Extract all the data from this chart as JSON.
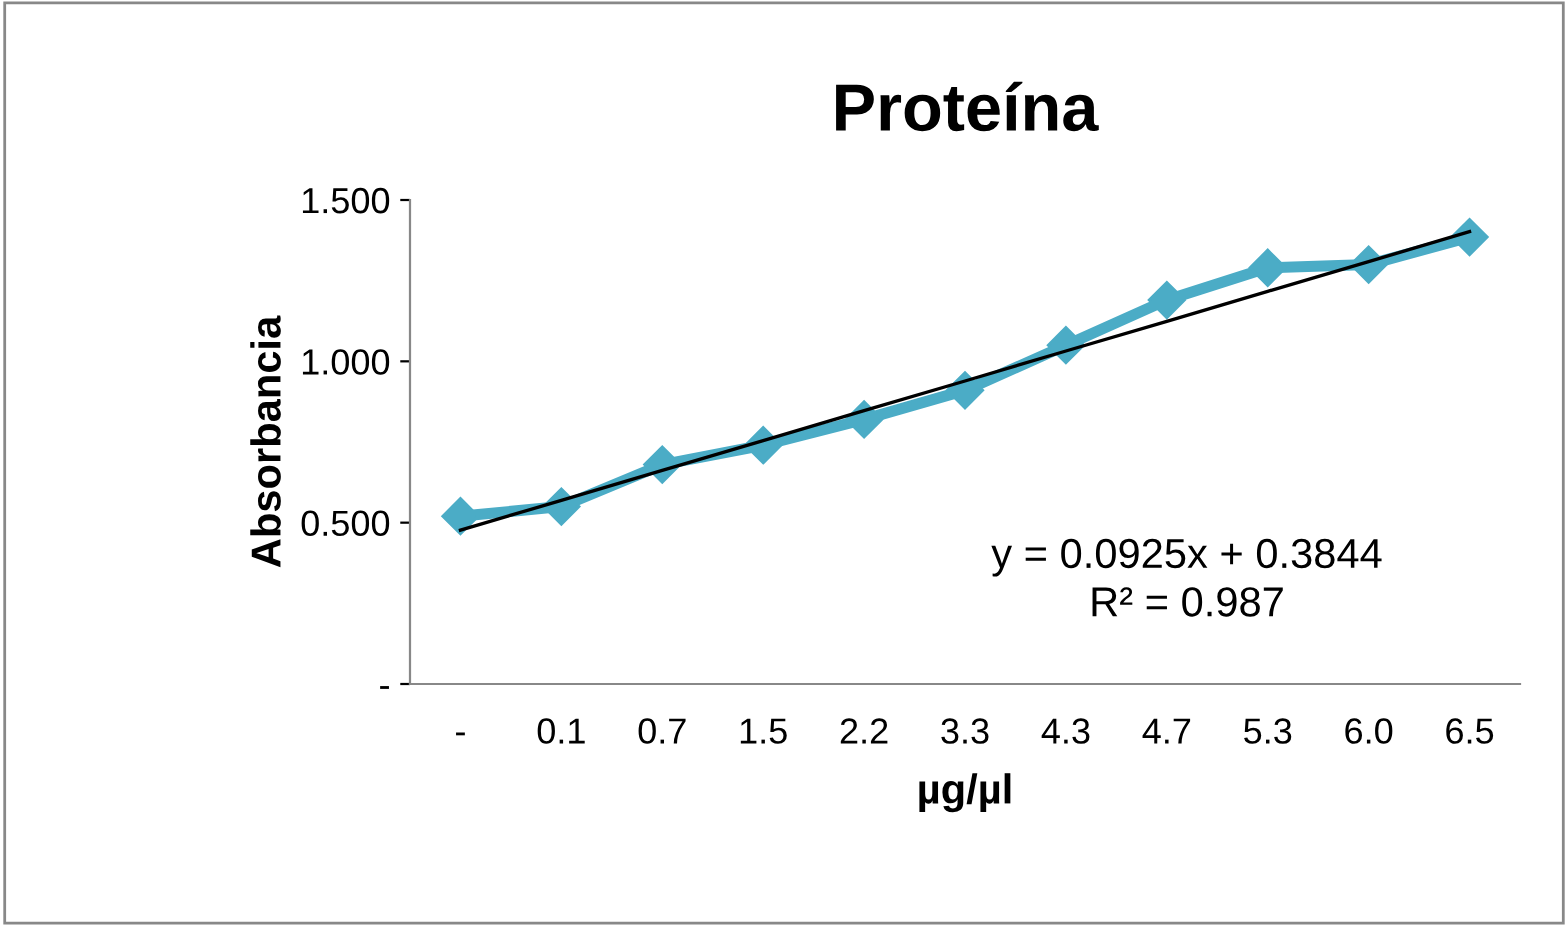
{
  "chart_data": {
    "type": "line",
    "title": "Proteína",
    "xlabel": "µg/µl",
    "ylabel": "Absorbancia",
    "categories": [
      "-",
      "0.1",
      "0.7",
      "1.5",
      "2.2",
      "3.3",
      "4.3",
      "4.7",
      "5.3",
      "6.0",
      "6.5"
    ],
    "series": [
      {
        "color": "#4bacc6",
        "marker": "diamond",
        "values": [
          0.52,
          0.55,
          0.68,
          0.74,
          0.82,
          0.91,
          1.05,
          1.19,
          1.29,
          1.3,
          1.385
        ]
      },
      {
        "type": "line",
        "color": "#000000",
        "marker": "none",
        "values": [
          0.477,
          0.569,
          0.662,
          0.754,
          0.847,
          0.939,
          1.032,
          1.124,
          1.217,
          1.309,
          1.402
        ]
      }
    ],
    "ylim": [
      0,
      1.5
    ],
    "yticks": [
      {
        "value": 0,
        "label": "-"
      },
      {
        "value": 0.5,
        "label": "0.500"
      },
      {
        "value": 1.0,
        "label": "1.000"
      },
      {
        "value": 1.5,
        "label": "1.500"
      }
    ],
    "grid": false,
    "legend": false,
    "annotations": [
      "y = 0.0925x + 0.3844",
      "R² = 0.987"
    ]
  }
}
